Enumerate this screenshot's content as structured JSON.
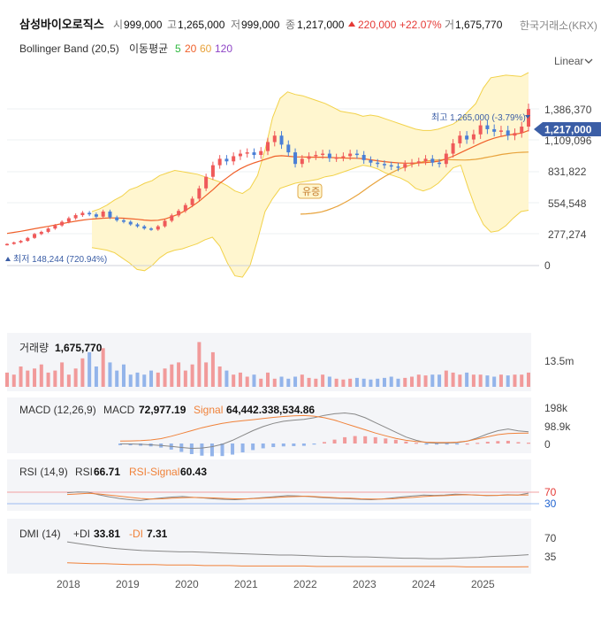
{
  "header": {
    "stock_name": "삼성바이오로직스",
    "open_label": "시",
    "open_value": "999,000",
    "high_label": "고",
    "high_value": "1,265,000",
    "low_label": "저",
    "low_value": "999,000",
    "close_label": "종",
    "close_value": "1,217,000",
    "change_value": "220,000",
    "change_pct": "+22.07%",
    "volume_label": "거",
    "volume_value": "1,675,770",
    "exchange": "한국거래소(KRX)"
  },
  "indicator_row": {
    "bollinger": "Bollinger Band (20,5)",
    "ma_label": "이동평균",
    "ma_periods": [
      "5",
      "20",
      "60",
      "120"
    ],
    "ma_colors": [
      "#2db83d",
      "#f0602a",
      "#e8a33c",
      "#8e44c6"
    ],
    "scale_mode": "Linear"
  },
  "colors": {
    "up": "#ef5a5a",
    "down": "#4a7fd6",
    "band_fill": "#fff6cf",
    "band_line": "#f2d24a",
    "ma5": "#2db83d",
    "ma20": "#f0602a",
    "ma60": "#e8a33c",
    "macd": "#888888",
    "signal": "#f0823a",
    "highlight": "#3b5ea6",
    "up_text": "#e53935",
    "down_text": "#1e62d0"
  },
  "price_panel": {
    "y_ticks": [
      "1,386,370",
      "1,109,096",
      "831,822",
      "554,548",
      "277,274",
      "0"
    ],
    "current_price": "1,217,000",
    "high_marker": "최고 1,265,000 (-3.79%)",
    "low_marker": "최저 148,244 (720.94%)",
    "event_label": "유증"
  },
  "volume_panel": {
    "title": "거래량",
    "value": "1,675,770",
    "y_tick": "13.5m"
  },
  "macd_panel": {
    "title": "MACD (12,26,9)",
    "macd_label": "MACD",
    "macd_value": "72,977.19",
    "signal_label": "Signal",
    "signal_value": "64,442.338,534.86",
    "y_ticks": [
      "198k",
      "98.9k",
      "0"
    ]
  },
  "rsi_panel": {
    "title": "RSI (14,9)",
    "rsi_label": "RSI",
    "rsi_value": "66.71",
    "signal_label": "RSI-Signal",
    "signal_value": "60.43",
    "y_ticks": [
      "70",
      "30"
    ]
  },
  "dmi_panel": {
    "title": "DMI (14)",
    "plus_label": "+DI",
    "plus_value": "33.81",
    "minus_label": "-DI",
    "minus_value": "7.31",
    "y_ticks": [
      "70",
      "35"
    ]
  },
  "x_axis": {
    "years": [
      "2018",
      "2019",
      "2020",
      "2021",
      "2022",
      "2023",
      "2024",
      "2025"
    ]
  },
  "chart_data": {
    "type": "candlestick",
    "x_unit": "month",
    "x_start": "2017-08",
    "ylim": [
      0,
      1500000
    ],
    "close": [
      168000,
      180000,
      192000,
      215000,
      245000,
      262000,
      288000,
      312000,
      340000,
      368000,
      392000,
      410000,
      398000,
      380000,
      420000,
      375000,
      352000,
      340000,
      320000,
      305000,
      288000,
      280000,
      305000,
      348000,
      390000,
      425000,
      470000,
      520000,
      600000,
      690000,
      780000,
      830000,
      810000,
      850000,
      870000,
      880000,
      860000,
      890000,
      960000,
      1010000,
      940000,
      880000,
      790000,
      830000,
      850000,
      860000,
      870000,
      835000,
      840000,
      850000,
      870000,
      860000,
      820000,
      800000,
      790000,
      780000,
      770000,
      760000,
      790000,
      800000,
      810000,
      830000,
      800000,
      790000,
      870000,
      950000,
      1010000,
      980000,
      1020000,
      1090000,
      1060000,
      1040000,
      1050000,
      1010000,
      1030000,
      1080000,
      1217000
    ],
    "ma20": [
      250000,
      258000,
      266000,
      276000,
      286000,
      296000,
      305000,
      315000,
      326000,
      336000,
      345000,
      354000,
      360000,
      364000,
      368000,
      370000,
      370000,
      368000,
      364000,
      360000,
      354000,
      350000,
      352000,
      362000,
      380000,
      400000,
      428000,
      462000,
      500000,
      545000,
      590000,
      640000,
      680000,
      720000,
      752000,
      778000,
      798000,
      815000,
      832000,
      850000,
      854000,
      850000,
      845000,
      844000,
      843000,
      842000,
      842000,
      840000,
      838000,
      836000,
      835000,
      834000,
      830000,
      822000,
      815000,
      808000,
      802000,
      798000,
      796000,
      796000,
      798000,
      800000,
      805000,
      812000,
      830000,
      850000,
      875000,
      900000,
      925000,
      950000,
      972000,
      990000,
      1004000,
      1015000,
      1022000,
      1030000,
      1050000
    ],
    "ma60": [
      400000,
      402000,
      405000,
      410000,
      418000,
      430000,
      445000,
      462000,
      482000,
      505000,
      530000,
      556000,
      585000,
      615000,
      643000,
      670000,
      695000,
      718000,
      738000,
      756000,
      772000,
      786000,
      797000,
      806000,
      813000,
      818000,
      821000,
      823000,
      823000,
      822000,
      821000,
      820000,
      822000,
      826000,
      832000,
      840000,
      848000,
      856000,
      864000,
      870000,
      875000,
      879000,
      881000,
      882000
    ],
    "bb_upper": [
      420000,
      440000,
      470000,
      510000,
      540000,
      590000,
      610000,
      640000,
      660000,
      700000,
      720000,
      740000,
      730000,
      720000,
      710000,
      690000,
      670000,
      650000,
      620000,
      580000,
      560000,
      600000,
      700000,
      900000,
      1150000,
      1300000,
      1350000,
      1330000,
      1320000,
      1300000,
      1280000,
      1260000,
      1230000,
      1200000,
      1190000,
      1180000,
      1160000,
      1170000,
      1160000,
      1140000,
      1120000,
      1100000,
      1080000,
      1060000,
      1050000,
      1050000,
      1060000,
      1080000,
      1100000,
      1140000,
      1200000,
      1260000,
      1380000,
      1460000,
      1470000,
      1480000,
      1475000,
      1470000,
      1500000
    ],
    "bb_lower": [
      140000,
      130000,
      120000,
      100000,
      60000,
      20000,
      -30000,
      -40000,
      0,
      60000,
      100000,
      120000,
      130000,
      150000,
      170000,
      200000,
      220000,
      150000,
      20000,
      -80000,
      -90000,
      0,
      200000,
      420000,
      520000,
      600000,
      620000,
      640000,
      650000,
      660000,
      670000,
      690000,
      700000,
      720000,
      740000,
      760000,
      780000,
      770000,
      750000,
      720000,
      700000,
      680000,
      650000,
      600000,
      580000,
      600000,
      640000,
      700000,
      760000,
      780000,
      600000,
      440000,
      320000,
      260000,
      270000,
      310000,
      370000,
      420000,
      430000
    ],
    "volume": [
      0.35,
      0.3,
      0.5,
      0.4,
      0.45,
      0.55,
      0.35,
      0.4,
      0.6,
      0.3,
      0.45,
      0.7,
      0.85,
      0.5,
      0.95,
      0.6,
      0.4,
      0.55,
      0.3,
      0.35,
      0.3,
      0.4,
      0.35,
      0.45,
      0.55,
      0.6,
      0.4,
      0.55,
      1.1,
      0.6,
      0.85,
      0.5,
      0.4,
      0.3,
      0.35,
      0.25,
      0.3,
      0.2,
      0.35,
      0.2,
      0.25,
      0.2,
      0.25,
      0.3,
      0.22,
      0.2,
      0.3,
      0.25,
      0.2,
      0.18,
      0.2,
      0.22,
      0.2,
      0.18,
      0.2,
      0.22,
      0.25,
      0.2,
      0.22,
      0.25,
      0.3,
      0.28,
      0.3,
      0.3,
      0.4,
      0.35,
      0.3,
      0.35,
      0.3,
      0.3,
      0.28,
      0.25,
      0.3,
      0.28,
      0.3,
      0.3,
      0.35
    ],
    "macd": [
      -2000,
      -3000,
      -5000,
      -8000,
      -12000,
      -18000,
      -25000,
      -30000,
      -28000,
      -20000,
      -5000,
      20000,
      50000,
      80000,
      105000,
      125000,
      138000,
      145000,
      150000,
      160000,
      175000,
      185000,
      190000,
      182000,
      160000,
      130000,
      100000,
      70000,
      40000,
      20000,
      5000,
      2000,
      3000,
      5000,
      15000,
      35000,
      60000,
      80000,
      90000,
      78000,
      72977
    ],
    "macd_signal": [
      15000,
      16000,
      18000,
      22000,
      30000,
      45000,
      62000,
      80000,
      98000,
      112000,
      125000,
      135000,
      142000,
      148000,
      155000,
      162000,
      168000,
      172000,
      174000,
      170000,
      160000,
      145000,
      125000,
      105000,
      85000,
      65000,
      48000,
      32000,
      20000,
      12000,
      8000,
      6000,
      6000,
      8000,
      15000,
      28000,
      42000,
      55000,
      62000,
      64000,
      64442
    ],
    "rsi": [
      68,
      71,
      70,
      61,
      54,
      48,
      44,
      41,
      46,
      50,
      53,
      55,
      52,
      50,
      47,
      45,
      44,
      46,
      49,
      52,
      55,
      58,
      57,
      55,
      52,
      50,
      48,
      47,
      45,
      44,
      46,
      50,
      54,
      57,
      60,
      59,
      60,
      63,
      62,
      60,
      58,
      59,
      61,
      60,
      66.71
    ],
    "rsi_signal": [
      62,
      64,
      66,
      64,
      60,
      56,
      52,
      48,
      46,
      47,
      49,
      51,
      52,
      51,
      50,
      48,
      47,
      47,
      48,
      50,
      52,
      54,
      55,
      56,
      54,
      52,
      50,
      49,
      47,
      46,
      46,
      47,
      50,
      52,
      55,
      57,
      58,
      60,
      61,
      60,
      59,
      59,
      60,
      60,
      60.43
    ],
    "plus_di": [
      62,
      58,
      54,
      50,
      47,
      45,
      43,
      42,
      41,
      40,
      40,
      39,
      38,
      37,
      36,
      35,
      34,
      33,
      33,
      32,
      31,
      30,
      30,
      29,
      29,
      28,
      27,
      26,
      26,
      25,
      25,
      26,
      27,
      28,
      30,
      31,
      32,
      33.81
    ],
    "minus_di": [
      16,
      15,
      14,
      14,
      13,
      12,
      12,
      12,
      11,
      11,
      11,
      10,
      10,
      10,
      9,
      9,
      9,
      9,
      9,
      9,
      8,
      8,
      8,
      8,
      8,
      8,
      8,
      8,
      8,
      8,
      8,
      8,
      7,
      7,
      7,
      7,
      7,
      7.31
    ]
  }
}
